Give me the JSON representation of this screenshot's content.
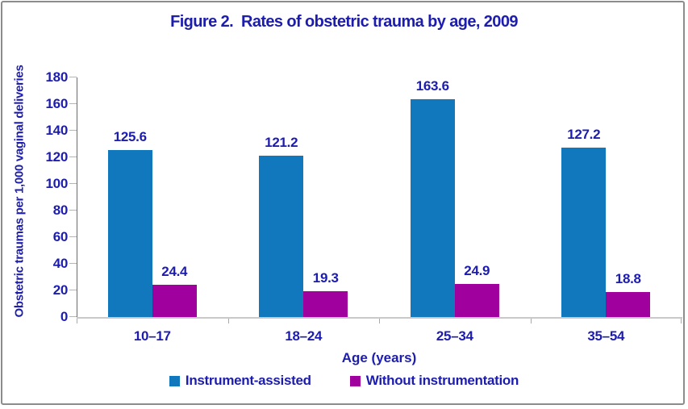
{
  "figure": {
    "title": "Figure 2.  Rates of obstetric trauma by age, 2009"
  },
  "chart_data": {
    "type": "bar",
    "title": "Figure 2.  Rates of obstetric trauma by age, 2009",
    "categories": [
      "10–17",
      "18–24",
      "25–34",
      "35–54"
    ],
    "series": [
      {
        "name": "Instrument-assisted",
        "color": "#1278BE",
        "values": [
          125.6,
          121.2,
          163.6,
          127.2
        ]
      },
      {
        "name": "Without instrumentation",
        "color": "#A0009E",
        "values": [
          24.4,
          19.3,
          24.9,
          18.8
        ]
      }
    ],
    "xlabel": "Age (years)",
    "ylabel": "Obstetric traumas per 1,000 vaginal deliveries",
    "ylim": [
      0,
      180
    ],
    "ytick_step": 20,
    "yticks": [
      0,
      20,
      40,
      60,
      80,
      100,
      120,
      140,
      160,
      180
    ],
    "grid": false,
    "value_labels": true,
    "legend_position": "bottom"
  },
  "colors": {
    "text": "#1C1CAF",
    "bar_blue": "#1278BE",
    "bar_purple": "#A0009E",
    "y_axis_line": "#6A6A6A",
    "x_axis_line": "#C9C9C9",
    "tick": "#B5B5B5",
    "frame_border": "#8C8C8C",
    "background": "#FFFFFF"
  }
}
